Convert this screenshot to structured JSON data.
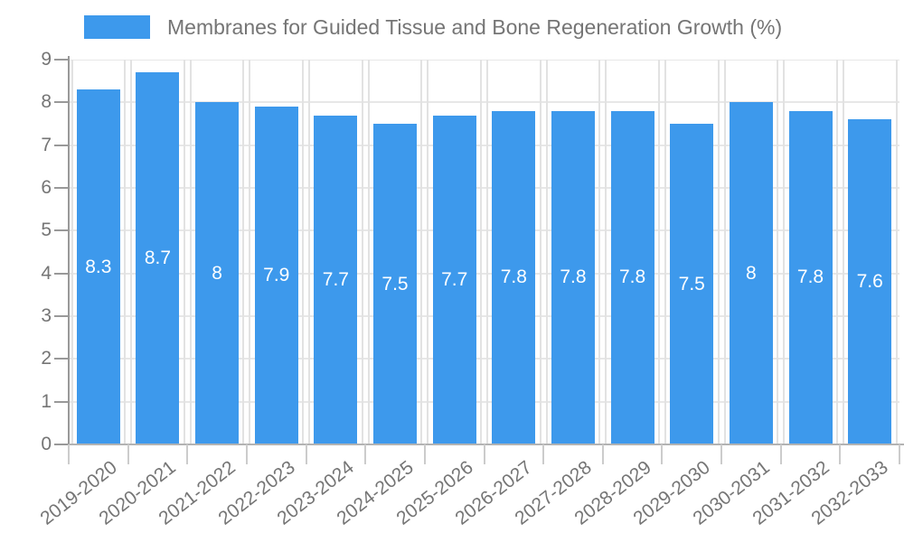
{
  "chart_data": {
    "type": "bar",
    "title": "Membranes for Guided Tissue and Bone Regeneration Growth (%)",
    "xlabel": "",
    "ylabel": "",
    "categories": [
      "2019-2020",
      "2020-2021",
      "2021-2022",
      "2022-2023",
      "2023-2024",
      "2024-2025",
      "2025-2026",
      "2026-2027",
      "2027-2028",
      "2028-2029",
      "2029-2030",
      "2030-2031",
      "2031-2032",
      "2032-2033"
    ],
    "values": [
      8.3,
      8.7,
      8,
      7.9,
      7.7,
      7.5,
      7.7,
      7.8,
      7.8,
      7.8,
      7.5,
      8,
      7.8,
      7.6
    ],
    "value_labels": [
      "8.3",
      "8.7",
      "8",
      "7.9",
      "7.7",
      "7.5",
      "7.7",
      "7.8",
      "7.8",
      "7.8",
      "7.5",
      "8",
      "7.8",
      "7.6"
    ],
    "ylim": [
      0,
      9
    ],
    "yticks": [
      0,
      1,
      2,
      3,
      4,
      5,
      6,
      7,
      8,
      9
    ],
    "grid": true,
    "legend_position": "top-left",
    "colors": {
      "bar": "#3d99ec",
      "gridline": "#e7e7e7",
      "vgridline": "#e2e2e2",
      "axis_line": "#999999",
      "baseline": "#b3b3b3",
      "xtick": "#cccccc",
      "axis_label": "#757575",
      "title": "#757575",
      "bar_label": "#ffffff",
      "background": "#ffffff"
    }
  }
}
